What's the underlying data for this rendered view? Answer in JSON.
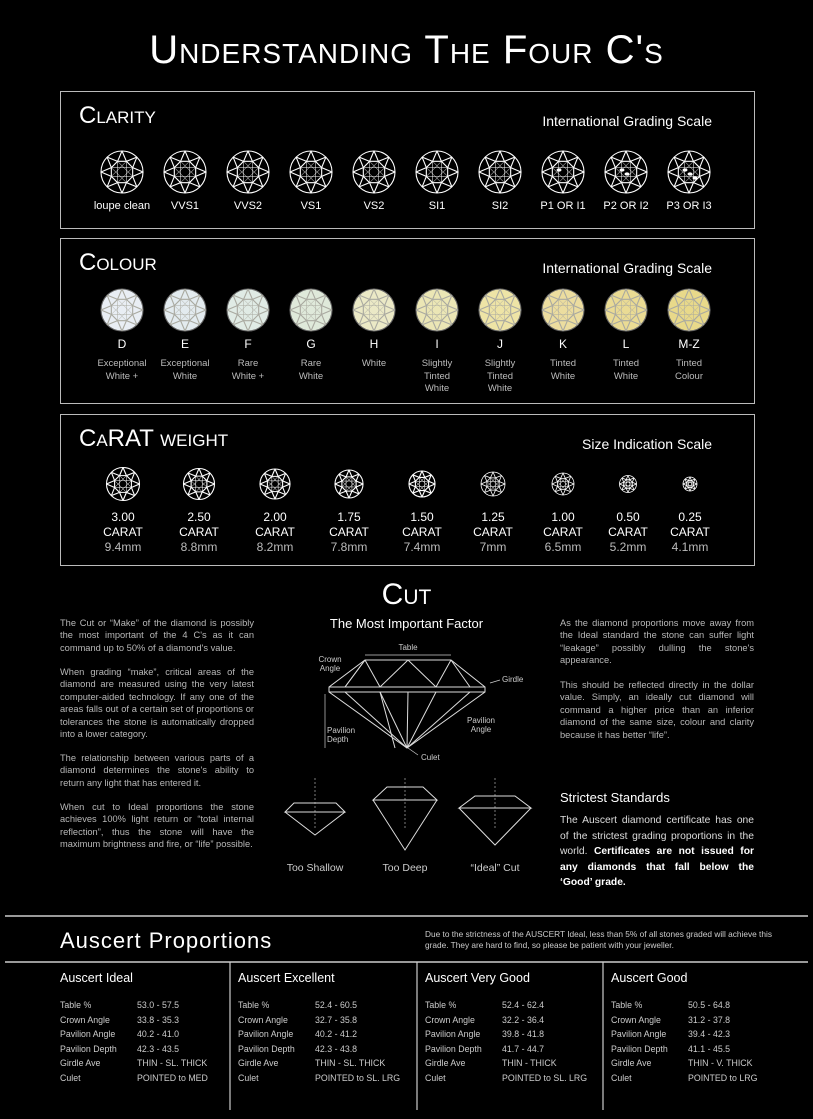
{
  "title": "Understanding The Four C's",
  "clarity": {
    "title": "Clarity",
    "scale_label": "International Grading Scale",
    "grades": [
      "loupe clean",
      "VVS1",
      "VVS2",
      "VS1",
      "VS2",
      "SI1",
      "SI2",
      "P1 OR I1",
      "P2 OR I2",
      "P3 OR I3"
    ]
  },
  "colour": {
    "title": "Colour",
    "scale_label": "International Grading Scale",
    "grades": [
      {
        "grade": "D",
        "description": [
          "Exceptional",
          "White +"
        ]
      },
      {
        "grade": "E",
        "description": [
          "Exceptional",
          "White"
        ]
      },
      {
        "grade": "F",
        "description": [
          "Rare",
          "White +"
        ]
      },
      {
        "grade": "G",
        "description": [
          "Rare",
          "White"
        ]
      },
      {
        "grade": "H",
        "description": [
          "White"
        ]
      },
      {
        "grade": "I",
        "description": [
          "Slightly",
          "Tinted",
          "White"
        ]
      },
      {
        "grade": "J",
        "description": [
          "Slightly",
          "Tinted",
          "White"
        ]
      },
      {
        "grade": "K",
        "description": [
          "Tinted",
          "White"
        ]
      },
      {
        "grade": "L",
        "description": [
          "Tinted",
          "White"
        ]
      },
      {
        "grade": "M-Z",
        "description": [
          "Tinted",
          "Colour"
        ]
      }
    ]
  },
  "carat": {
    "title": "CaRAT weight",
    "scale_label": "Size Indication Scale",
    "sizes": [
      {
        "weight": "3.00",
        "unit": "CARAT",
        "diameter": "9.4mm"
      },
      {
        "weight": "2.50",
        "unit": "CARAT",
        "diameter": "8.8mm"
      },
      {
        "weight": "2.00",
        "unit": "CARAT",
        "diameter": "8.2mm"
      },
      {
        "weight": "1.75",
        "unit": "CARAT",
        "diameter": "7.8mm"
      },
      {
        "weight": "1.50",
        "unit": "CARAT",
        "diameter": "7.4mm"
      },
      {
        "weight": "1.25",
        "unit": "CARAT",
        "diameter": "7mm"
      },
      {
        "weight": "1.00",
        "unit": "CARAT",
        "diameter": "6.5mm"
      },
      {
        "weight": "0.50",
        "unit": "CARAT",
        "diameter": "5.2mm"
      },
      {
        "weight": "0.25",
        "unit": "CARAT",
        "diameter": "4.1mm"
      }
    ]
  },
  "cut": {
    "title": "Cut",
    "subtitle": "The Most Important Factor",
    "left_paragraphs": [
      "The Cut or “Make” of the diamond is possibly the most important of the 4 C's as it can command up to 50% of a diamond's value.",
      "When grading “make”, critical areas of the diamond are measured using the very latest computer-aided technology.  If any one of the areas falls out of a certain set of proportions or tolerances the stone is automatically dropped into a lower category.",
      "The relationship between various parts of a diamond determines the stone's ability to return any light that has entered it.",
      "When cut to Ideal proportions the stone achieves 100% light return or “total internal reflection”, thus the stone will have the maximum brightness and fire, or “life” possible."
    ],
    "right_paragraphs": [
      "As the diamond proportions move away from the Ideal standard the stone can suffer light “leakage” possibly dulling the stone's appearance.",
      "This should be reflected directly in the dollar value. Simply, an ideally cut diamond will command a higher price than an inferior diamond of the same size, colour and clarity because it has better “life”."
    ],
    "diagram_labels": {
      "table": "Table",
      "crown_angle": "Crown Angle",
      "girdle": "Girdle",
      "pavilion_angle": "Pavilion Angle",
      "pavilion_depth": "Pavilion Depth",
      "culet": "Culet"
    },
    "examples": [
      "Too Shallow",
      "Too Deep",
      "“Ideal” Cut"
    ],
    "standards": {
      "title": "Strictest Standards",
      "text": "The Auscert diamond certificate has one of the strictest grading proportions in the world.",
      "bold_text": "Certificates are not issued for any diamonds that fall below the ‘Good’ grade."
    }
  },
  "proportions": {
    "title": "Auscert Proportions",
    "note": "Due to the strictness of the AUSCERT Ideal, less than 5% of all stones graded will achieve this grade. They are hard to find, so please be patient with your jeweller.",
    "grades": [
      {
        "name": "Auscert Ideal",
        "rows": [
          [
            "Table %",
            "53.0 - 57.5"
          ],
          [
            "Crown Angle",
            "33.8 - 35.3"
          ],
          [
            "Pavilion Angle",
            "40.2 - 41.0"
          ],
          [
            "Pavilion Depth",
            "42.3 - 43.5"
          ],
          [
            "Girdle Ave",
            "THIN - SL. THICK"
          ],
          [
            "Culet",
            "POINTED to MED"
          ]
        ]
      },
      {
        "name": "Auscert Excellent",
        "rows": [
          [
            "Table %",
            "52.4 - 60.5"
          ],
          [
            "Crown Angle",
            "32.7 - 35.8"
          ],
          [
            "Pavilion Angle",
            "40.2 - 41.2"
          ],
          [
            "Pavilion Depth",
            "42.3 - 43.8"
          ],
          [
            "Girdle Ave",
            "THIN - SL. THICK"
          ],
          [
            "Culet",
            "POINTED to SL. LRG"
          ]
        ]
      },
      {
        "name": "Auscert Very Good",
        "rows": [
          [
            "Table %",
            "52.4 - 62.4"
          ],
          [
            "Crown Angle",
            "32.2 - 36.4"
          ],
          [
            "Pavilion Angle",
            "39.8 - 41.8"
          ],
          [
            "Pavilion Depth",
            "41.7 - 44.7"
          ],
          [
            "Girdle Ave",
            "THIN - THICK"
          ],
          [
            "Culet",
            "POINTED to SL. LRG"
          ]
        ]
      },
      {
        "name": "Auscert Good",
        "rows": [
          [
            "Table %",
            "50.5 - 64.8"
          ],
          [
            "Crown Angle",
            "31.2 - 37.8"
          ],
          [
            "Pavilion Angle",
            "39.4 - 42.3"
          ],
          [
            "Pavilion Depth",
            "41.1 - 45.5"
          ],
          [
            "Girdle Ave",
            "THIN - V. THICK"
          ],
          [
            "Culet",
            "POINTED to LRG"
          ]
        ]
      }
    ]
  }
}
